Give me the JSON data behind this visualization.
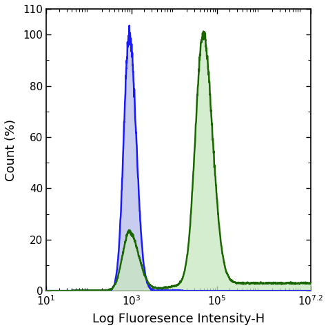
{
  "xlim_log": [
    1,
    7.2
  ],
  "ylim": [
    0,
    110
  ],
  "yticks": [
    0,
    20,
    40,
    60,
    80,
    100,
    110
  ],
  "ytick_labels": [
    "0",
    "20",
    "40",
    "60",
    "80",
    "100",
    "110"
  ],
  "xtick_positions": [
    1,
    3,
    5,
    7.2
  ],
  "xtick_labels": [
    "10$^1$",
    "10$^3$",
    "10$^5$",
    "10$^{7.2}$"
  ],
  "xlabel": "Log Fluoresence Intensity-H",
  "ylabel": "Count (%)",
  "blue_color": "#1a1aff",
  "blue_fill": "#c8ccee",
  "green_color": "#1a6600",
  "green_fill": "#c8e8c0",
  "blue_peak_log": 2.95,
  "blue_peak_height": 100,
  "green_peak_log": 4.68,
  "green_peak_height": 97,
  "green_shoulder_peak_log": 2.95,
  "green_shoulder_height": 23
}
